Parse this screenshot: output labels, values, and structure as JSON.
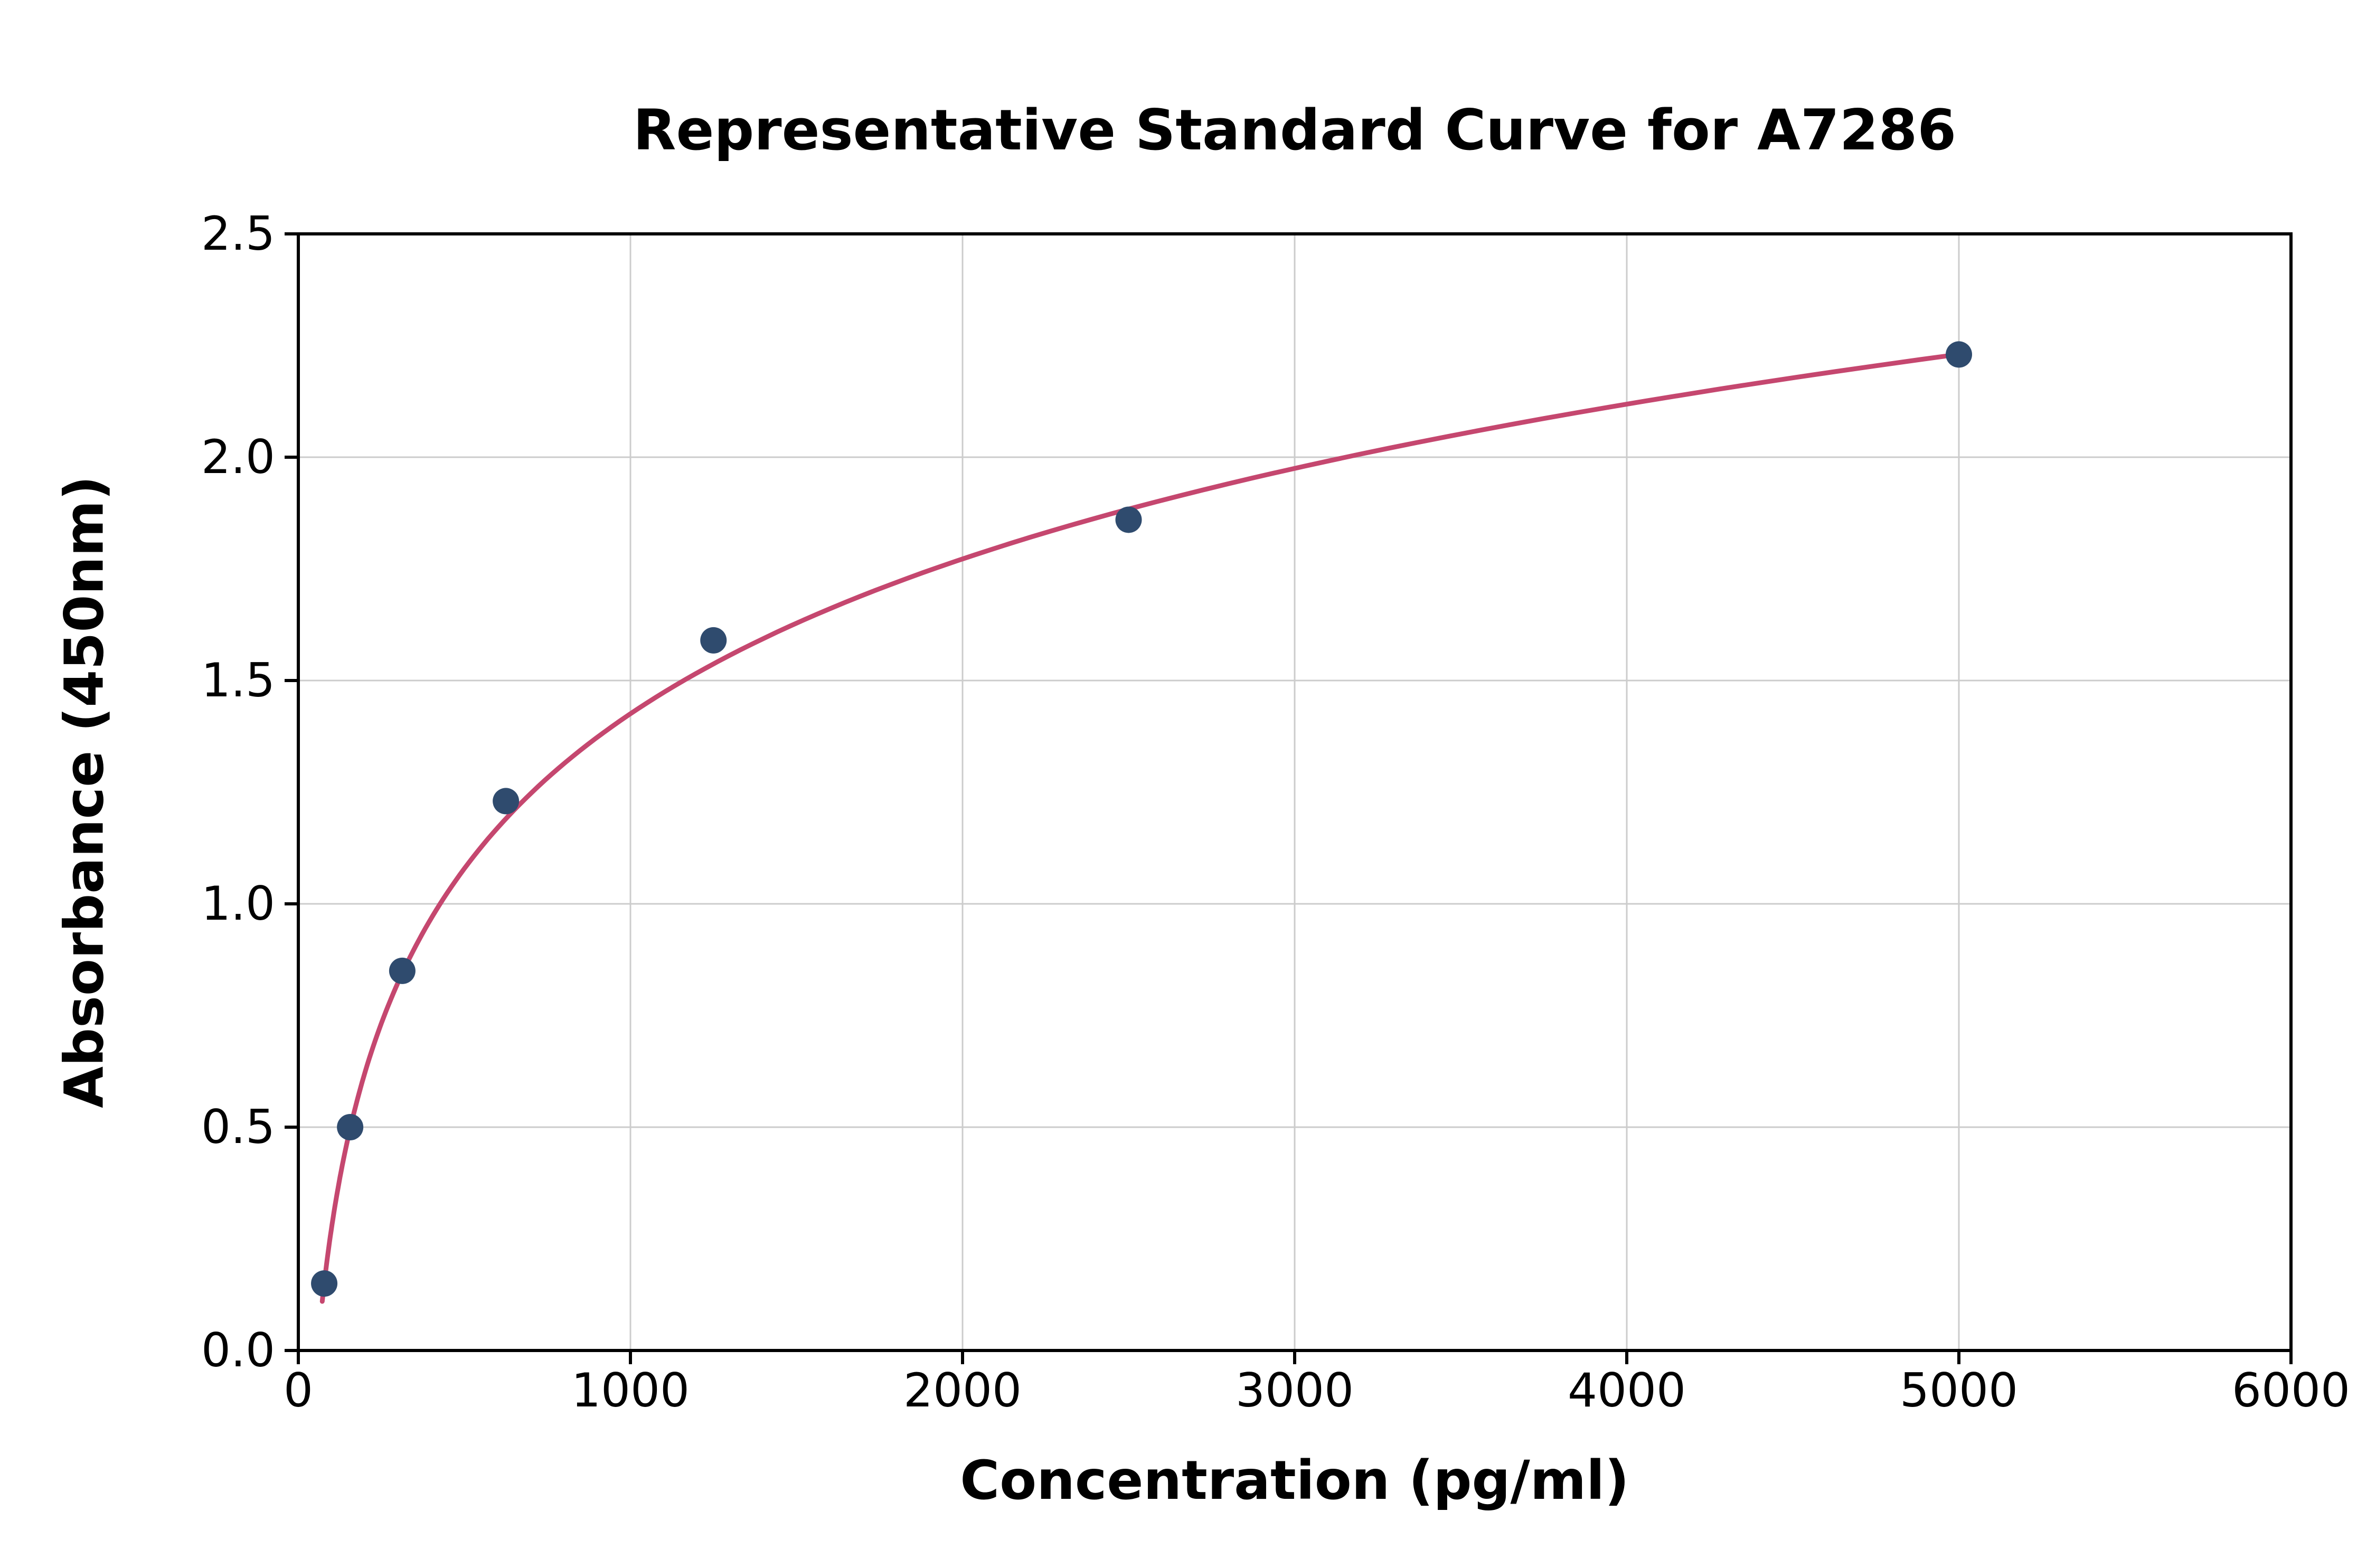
{
  "chart_data": {
    "type": "scatter",
    "title": "Representative Standard Curve for A7286",
    "xlabel": "Concentration (pg/ml)",
    "ylabel": "Absorbance (450nm)",
    "xlim": [
      0,
      6000
    ],
    "ylim": [
      0,
      2.5
    ],
    "xticks": [
      0,
      1000,
      2000,
      3000,
      4000,
      5000,
      6000
    ],
    "xtick_labels": [
      "0",
      "1000",
      "2000",
      "3000",
      "4000",
      "5000",
      "6000"
    ],
    "yticks": [
      0,
      0.5,
      1.0,
      1.5,
      2.0,
      2.5
    ],
    "ytick_labels": [
      "0.0",
      "0.5",
      "1.0",
      "1.5",
      "2.0",
      "2.5"
    ],
    "grid": true,
    "legend": "none",
    "points": [
      {
        "x": 78,
        "y": 0.15
      },
      {
        "x": 156,
        "y": 0.5
      },
      {
        "x": 313,
        "y": 0.85
      },
      {
        "x": 625,
        "y": 1.23
      },
      {
        "x": 1250,
        "y": 1.59
      },
      {
        "x": 2500,
        "y": 1.86
      },
      {
        "x": 5000,
        "y": 2.23
      }
    ],
    "fit": {
      "type": "log2",
      "y0": 0.15,
      "x0": 78,
      "slope": 0.3466,
      "x_start": 72,
      "x_end": 5015
    },
    "colors": {
      "point": "#2f4b6e",
      "curve": "#c5476f",
      "grid": "#cccccc",
      "axis": "#000000",
      "text": "#000000",
      "background": "#ffffff"
    }
  }
}
